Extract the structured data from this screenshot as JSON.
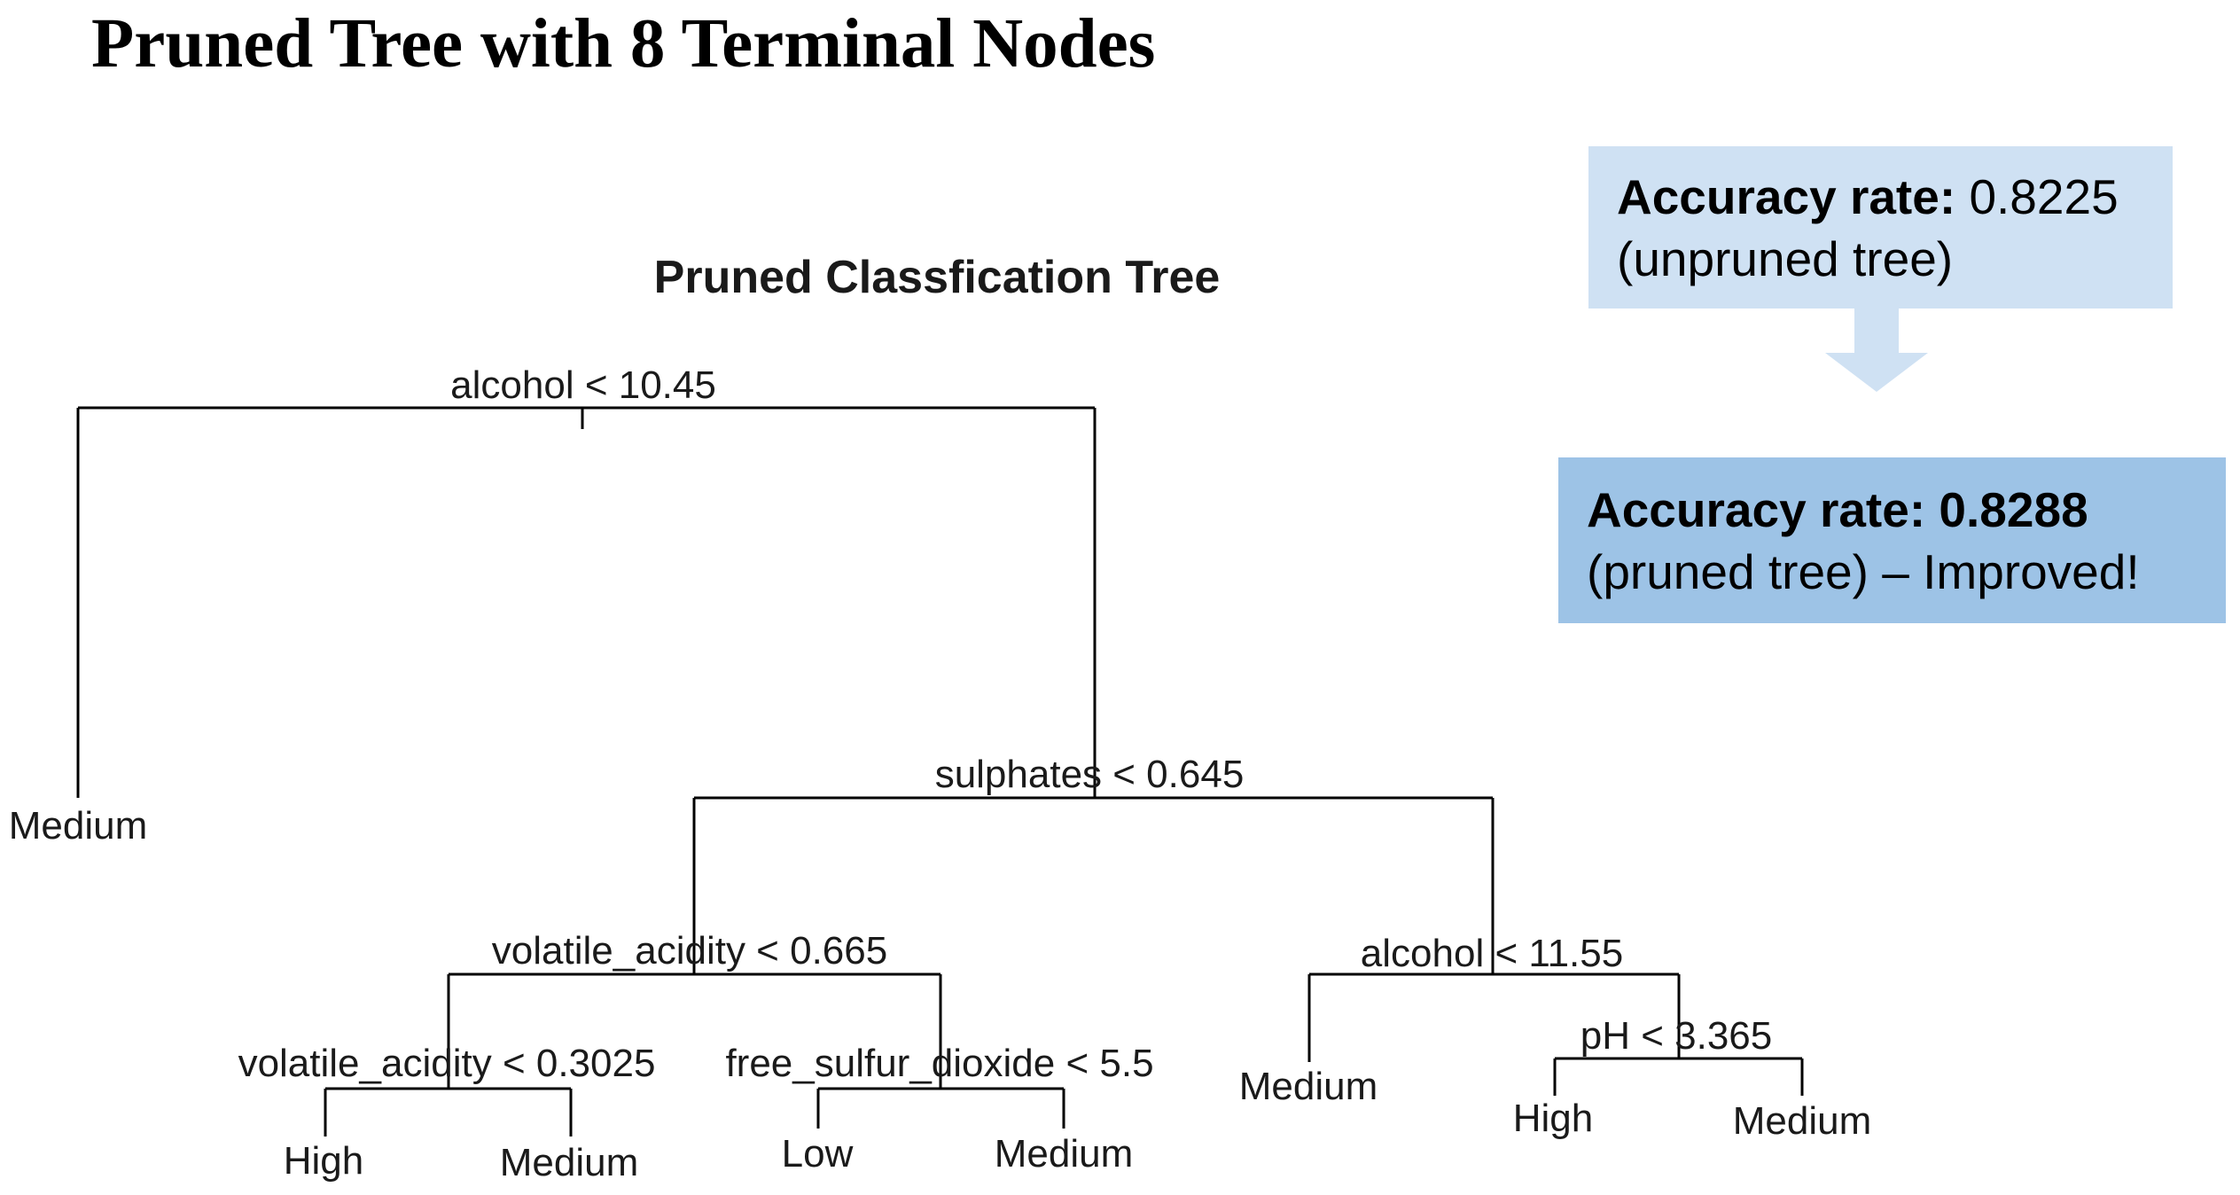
{
  "slide": {
    "title": "Pruned Tree with 8 Terminal Nodes"
  },
  "tree": {
    "title": "Pruned Classfication Tree",
    "splits": {
      "root": "alcohol < 10.45",
      "n_sulphates": "sulphates < 0.645",
      "n_volatile_1": "volatile_acidity < 0.665",
      "n_alcohol_2": "alcohol < 11.55",
      "n_volatile_2": "volatile_acidity < 0.3025",
      "n_sulfur": "free_sulfur_dioxide < 5.5",
      "n_ph": "pH < 3.365"
    },
    "leaves": {
      "root_left": "Medium",
      "va2_left": "High",
      "va2_right": "Medium",
      "sulfur_left": "Low",
      "sulfur_right": "Medium",
      "alc2_left": "Medium",
      "ph_left": "High",
      "ph_right": "Medium"
    }
  },
  "callouts": {
    "unpruned": {
      "label": "Accuracy rate:",
      "value": "0.8225",
      "note": "(unpruned tree)"
    },
    "pruned": {
      "label": "Accuracy rate: 0.8288",
      "note": "(pruned tree) – Improved!"
    }
  },
  "colors": {
    "callout_light": "#cfe1f3",
    "callout_dark": "#9dc3e6",
    "arrow": "#cfe1f3",
    "tree_line": "#000000"
  }
}
